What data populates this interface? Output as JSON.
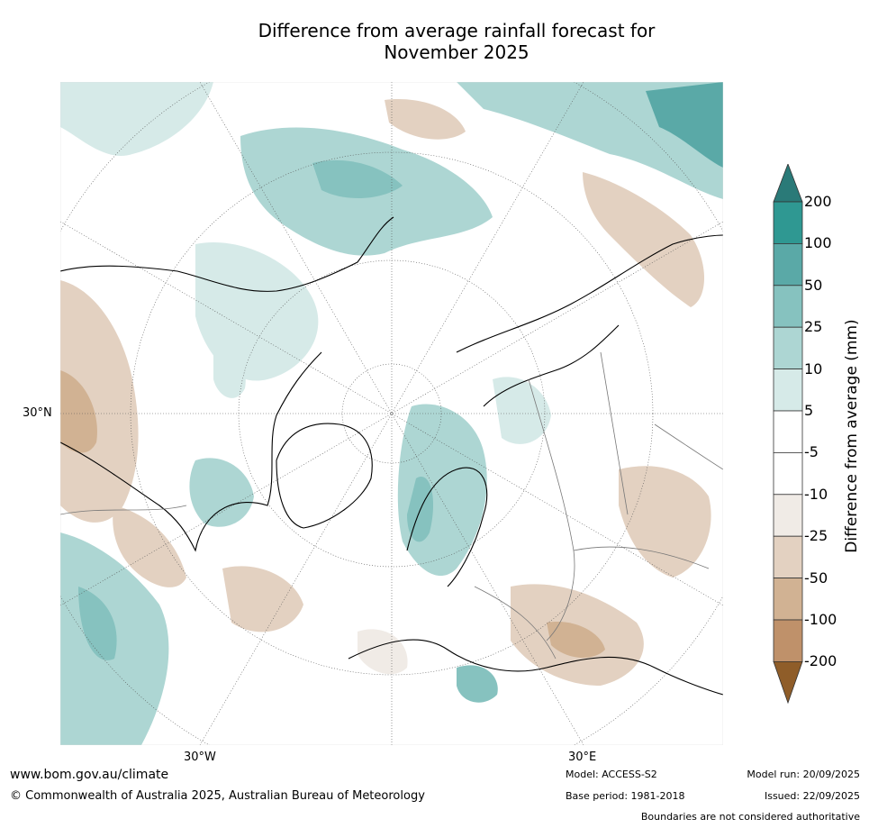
{
  "title_line1": "Difference from average rainfall forecast for",
  "title_line2": "November 2025",
  "map": {
    "lat_label": "30°N",
    "lon_label_west": "30°W",
    "lon_label_east": "30°E"
  },
  "colorbar": {
    "title": "Difference from average (mm)",
    "ticks": [
      "200",
      "100",
      "50",
      "25",
      "10",
      "5",
      "-5",
      "-10",
      "-25",
      "-50",
      "-100",
      "-200"
    ],
    "colors": {
      "over": "#2a7a78",
      "c200": "#2f9892",
      "c100": "#5aa9a7",
      "c50": "#86c2bf",
      "c25": "#add6d3",
      "c10": "#d6eae8",
      "neutral": "#ffffff",
      "cm10": "#f0ebe6",
      "cm25": "#e3d1c1",
      "cm50": "#d1b293",
      "cm100": "#bf916a",
      "cm200": "#ad7848",
      "under": "#8f5d29"
    }
  },
  "footer": {
    "url": "www.bom.gov.au/climate",
    "copyright": "© Commonwealth of Australia 2025, Australian Bureau of Meteorology",
    "model": "Model: ACCESS-S2",
    "base_period": "Base period: 1981-2018",
    "model_run": "Model run: 20/09/2025",
    "issued": "Issued: 22/09/2025",
    "disclaimer": "Boundaries are not considered authoritative"
  }
}
